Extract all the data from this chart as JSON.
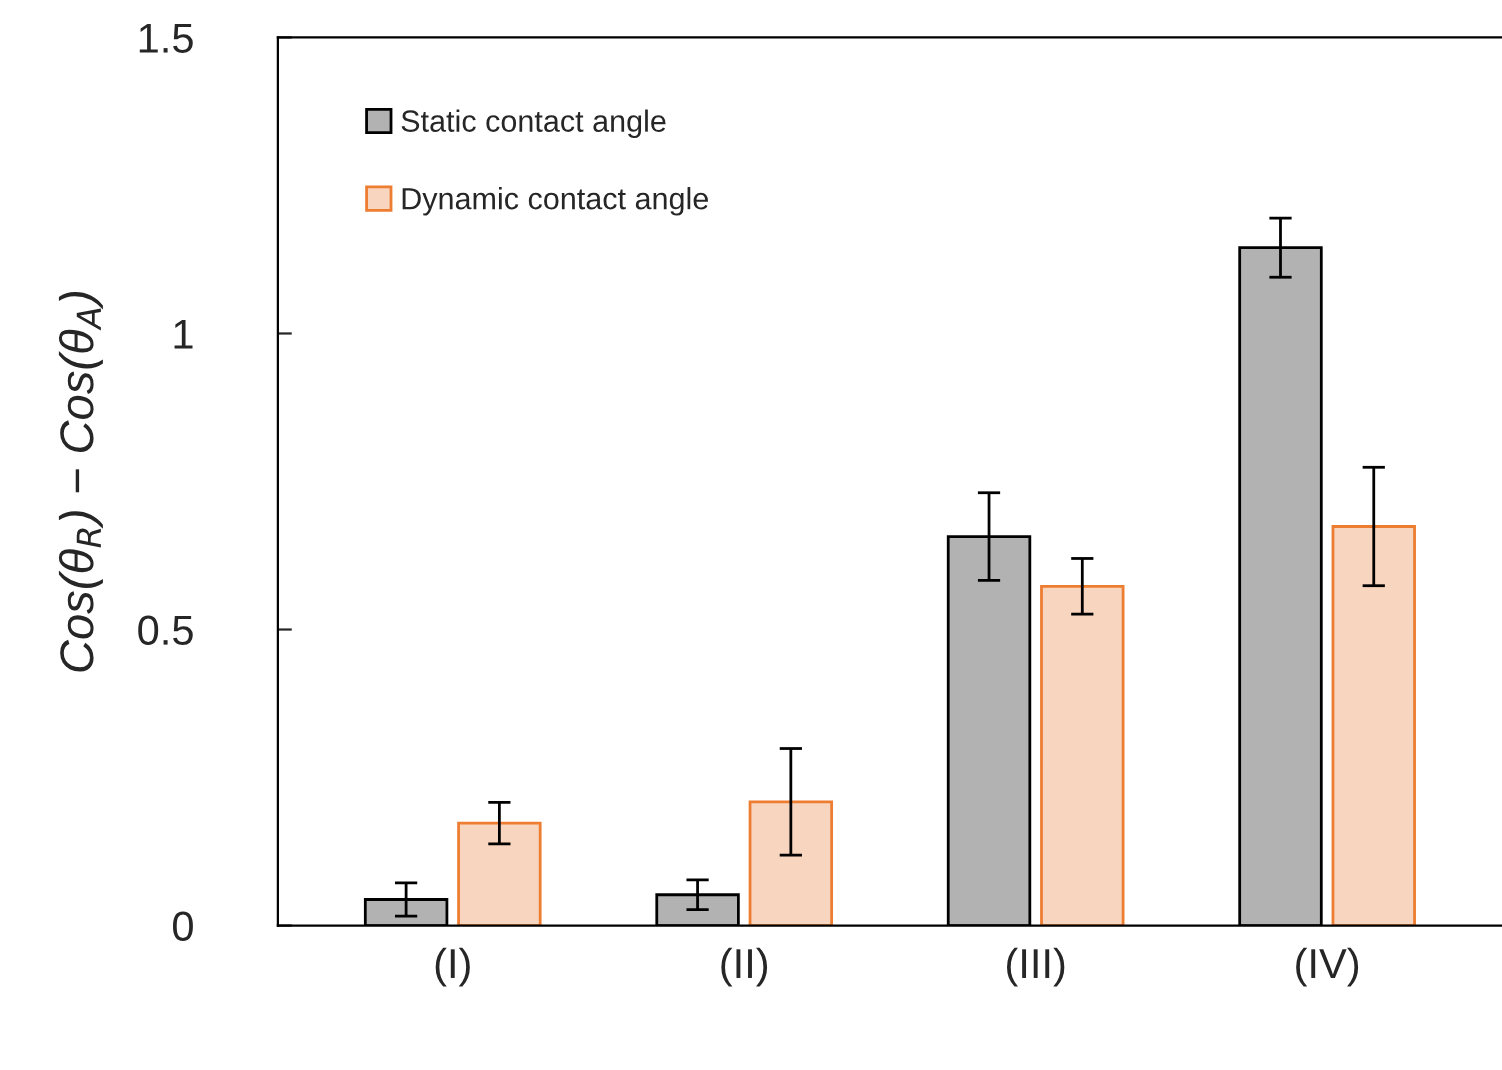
{
  "chart_data": {
    "type": "bar",
    "ylabel": "Cos(θ$_{R}$) − Cos(θ$_{A}$)",
    "categories": [
      "(I)",
      "(II)",
      "(III)",
      "(IV)"
    ],
    "series": [
      {
        "name": "Static contact angle",
        "color": "#b2b2b2",
        "values": [
          0.044,
          0.052,
          0.657,
          1.145
        ],
        "errors": [
          0.028,
          0.025,
          0.074,
          0.05
        ]
      },
      {
        "name": "Dynamic contact angle",
        "color": "#f8d5bf",
        "values": [
          0.173,
          0.209,
          0.573,
          0.674
        ],
        "errors": [
          0.035,
          0.09,
          0.047,
          0.1
        ]
      }
    ],
    "ylim": [
      0,
      1.5
    ],
    "yticks": [
      0,
      {
        "value": 0.5,
        "label": "0.5"
      },
      1,
      1.5
    ],
    "grid": false,
    "legend": "top left"
  }
}
